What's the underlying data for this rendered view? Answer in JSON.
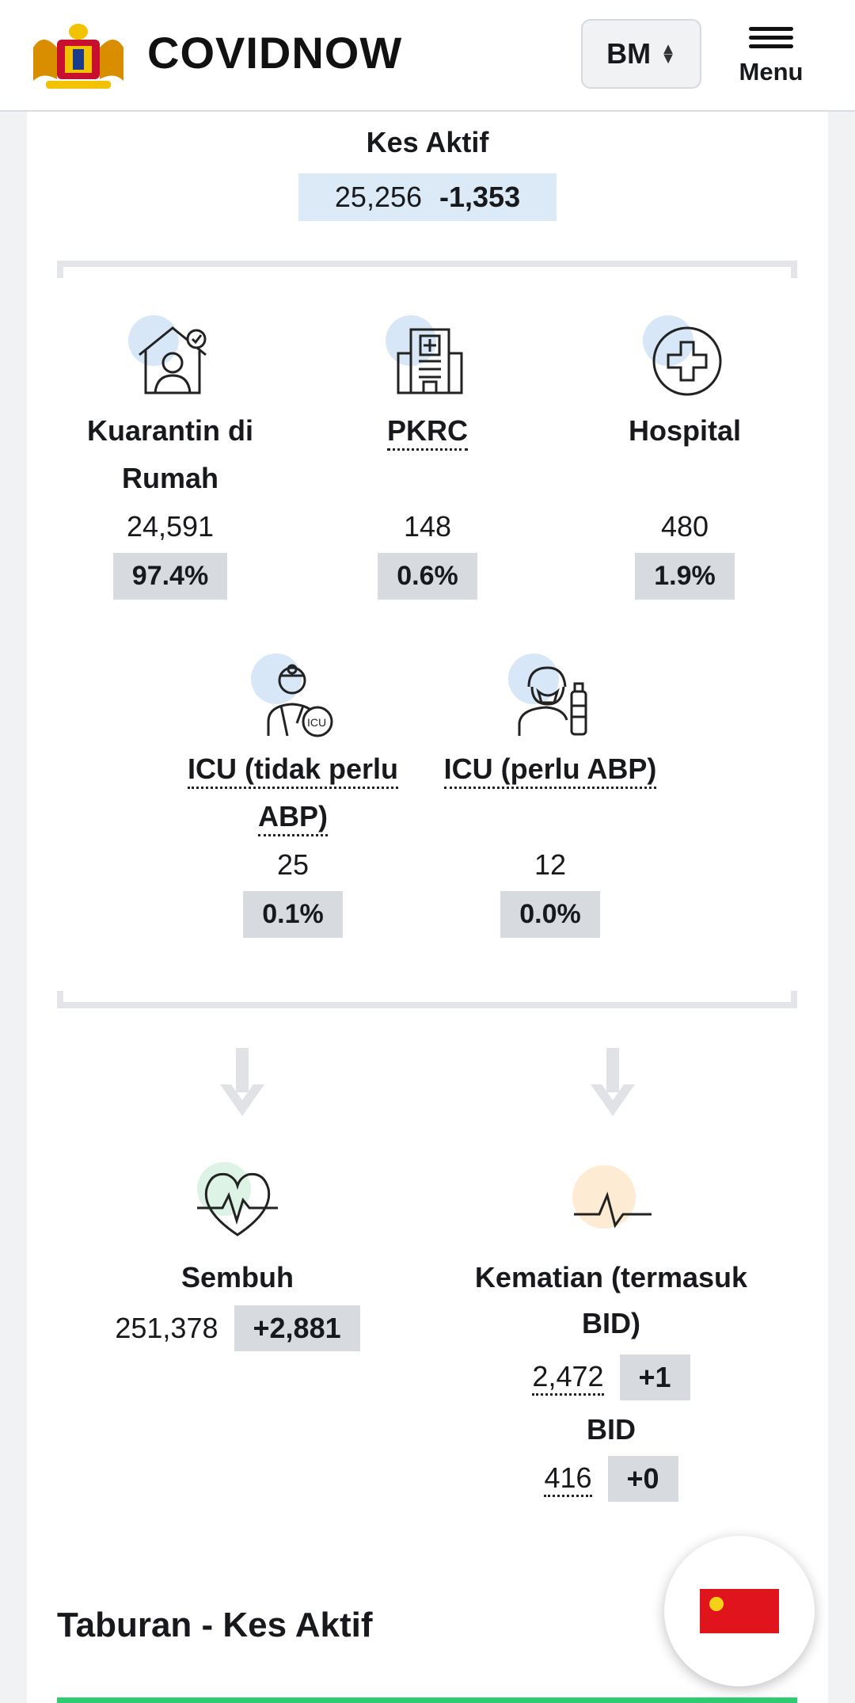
{
  "header": {
    "brand": "COVIDNOW",
    "language": "BM",
    "menu_label": "Menu"
  },
  "active_cases": {
    "title": "Kes Aktif",
    "value": "25,256",
    "delta": "-1,353"
  },
  "breakdown": [
    {
      "label": "Kuarantin di Rumah",
      "value": "24,591",
      "percent": "97.4%",
      "icon": "home-quarantine-icon"
    },
    {
      "label": "PKRC",
      "value": "148",
      "percent": "0.6%",
      "icon": "quarantine-centre-icon"
    },
    {
      "label": "Hospital",
      "value": "480",
      "percent": "1.9%",
      "icon": "hospital-cross-icon"
    },
    {
      "label": "ICU (tidak perlu ABP)",
      "value": "25",
      "percent": "0.1%",
      "icon": "icu-doctor-icon"
    },
    {
      "label": "ICU (perlu ABP)",
      "value": "12",
      "percent": "0.0%",
      "icon": "ventilator-patient-icon"
    }
  ],
  "recovered": {
    "label": "Sembuh",
    "value": "251,378",
    "delta": "+2,881",
    "icon": "heart-pulse-icon"
  },
  "deaths": {
    "label": "Kematian (termasuk BID)",
    "value": "2,472",
    "delta": "+1",
    "bid_label": "BID",
    "bid_value": "416",
    "bid_delta": "+0",
    "icon": "flatline-pulse-icon"
  },
  "section": {
    "title": "Taburan - Kes Aktif"
  },
  "colors": {
    "accent_blue": "#dceaf7",
    "badge_gray": "#d7dade",
    "green": "#2ecc71",
    "flag_red": "#e0141c"
  }
}
